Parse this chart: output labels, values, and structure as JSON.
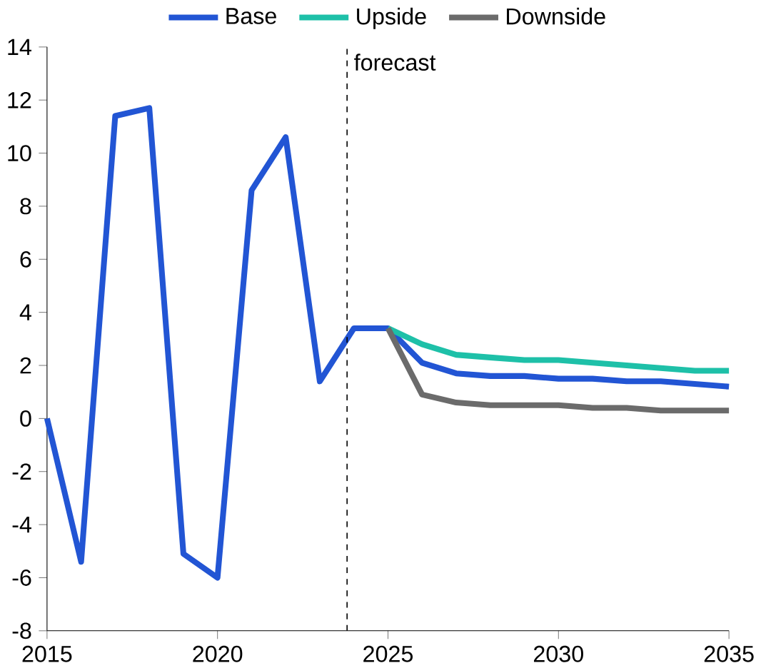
{
  "chart_data": {
    "type": "line",
    "legend": "top",
    "line_style": "solid",
    "marker": "none",
    "grid": false,
    "xlim": [
      2015,
      2035
    ],
    "xticks": [
      2015,
      2020,
      2025,
      2030,
      2035
    ],
    "ylim": [
      -8,
      14
    ],
    "yticks": [
      -8,
      -6,
      -4,
      -2,
      0,
      2,
      4,
      6,
      8,
      10,
      12,
      14
    ],
    "ref_lines": [
      {
        "axis": "x",
        "value": 2023.8,
        "label": "forecast",
        "color": "#000000",
        "line_style": "dashed"
      }
    ],
    "series": [
      {
        "name": "Base",
        "color": "#2255d4",
        "x": [
          2015,
          2016,
          2017,
          2018,
          2019,
          2020,
          2021,
          2022,
          2023,
          2024,
          2025,
          2026,
          2027,
          2028,
          2029,
          2030,
          2031,
          2032,
          2033,
          2034,
          2035
        ],
        "values": [
          0,
          -5.4,
          11.4,
          11.7,
          -5.1,
          -6.0,
          8.6,
          10.6,
          1.4,
          3.4,
          3.4,
          2.1,
          1.7,
          1.6,
          1.6,
          1.5,
          1.5,
          1.4,
          1.4,
          1.3,
          1.2
        ]
      },
      {
        "name": "Upside",
        "color": "#1ec0a8",
        "x": [
          2025,
          2026,
          2027,
          2028,
          2029,
          2030,
          2031,
          2032,
          2033,
          2034,
          2035
        ],
        "values": [
          3.4,
          2.8,
          2.4,
          2.3,
          2.2,
          2.2,
          2.1,
          2.0,
          1.9,
          1.8,
          1.8
        ]
      },
      {
        "name": "Downside",
        "color": "#6b6b6b",
        "x": [
          2025,
          2026,
          2027,
          2028,
          2029,
          2030,
          2031,
          2032,
          2033,
          2034,
          2035
        ],
        "values": [
          3.4,
          0.9,
          0.6,
          0.5,
          0.5,
          0.5,
          0.4,
          0.4,
          0.3,
          0.3,
          0.3
        ]
      }
    ]
  }
}
